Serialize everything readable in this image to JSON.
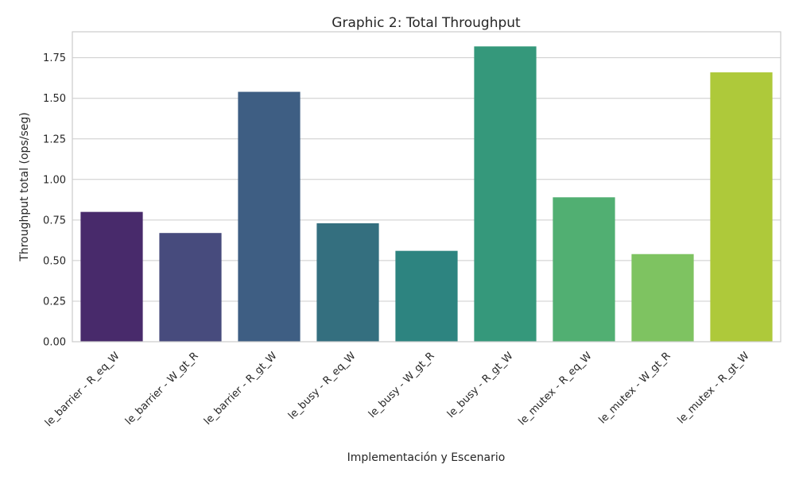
{
  "chart_data": {
    "type": "bar",
    "title": "Graphic 2: Total Throughput",
    "xlabel": "Implementación y Escenario",
    "ylabel": "Throughput total (ops/seg)",
    "categories": [
      "le_barrier - R_eq_W",
      "le_barrier - W_gt_R",
      "le_barrier - R_gt_W",
      "le_busy - R_eq_W",
      "le_busy - W_gt_R",
      "le_busy - R_gt_W",
      "le_mutex - R_eq_W",
      "le_mutex - W_gt_R",
      "le_mutex - R_gt_W"
    ],
    "values": [
      0.8,
      0.67,
      1.54,
      0.73,
      0.56,
      1.82,
      0.89,
      0.54,
      1.66
    ],
    "colors": [
      "#482a6b",
      "#474b7d",
      "#3e5e83",
      "#346f7f",
      "#2d8480",
      "#35987b",
      "#51af72",
      "#7ec361",
      "#aec93a"
    ],
    "ylim": [
      0,
      1.91
    ],
    "yticks": [
      0.0,
      0.25,
      0.5,
      0.75,
      1.0,
      1.25,
      1.5,
      1.75
    ],
    "ytick_labels": [
      "0.00",
      "0.25",
      "0.50",
      "0.75",
      "1.00",
      "1.25",
      "1.50",
      "1.75"
    ],
    "grid": true,
    "legend": "none"
  }
}
